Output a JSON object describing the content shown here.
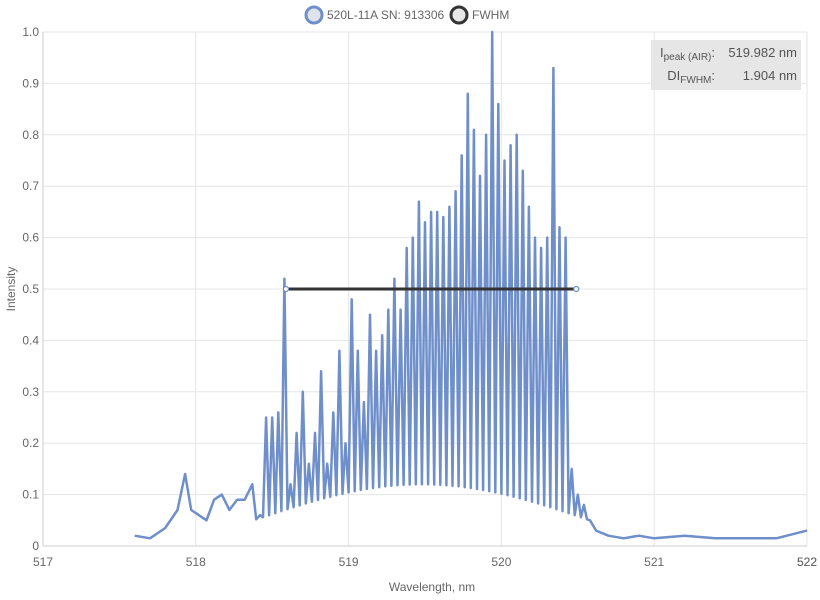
{
  "chart_data": {
    "type": "line",
    "xlabel": "Wavelength, nm",
    "ylabel": "Intensity",
    "xlim": [
      517,
      522
    ],
    "ylim": [
      0,
      1.0
    ],
    "x_ticks": [
      "517",
      "518",
      "519",
      "520",
      "521",
      "522",
      "522"
    ],
    "y_ticks": [
      "0",
      "0.1",
      "0.2",
      "0.3",
      "0.4",
      "0.5",
      "0.6",
      "0.7",
      "0.8",
      "0.9",
      "1.0"
    ],
    "grid": true,
    "legend_position": "top",
    "series": [
      {
        "name": "520L-11A SN: 913306",
        "color": "#6f8fcb",
        "style": "line",
        "x": [
          517.6,
          517.7,
          517.8,
          517.88,
          517.93,
          517.97,
          518.02,
          518.07,
          518.12,
          518.17,
          518.22,
          518.27,
          518.32,
          518.37,
          518.42,
          518.46,
          518.5,
          518.54,
          518.58,
          518.62,
          518.66,
          518.7,
          518.74,
          518.78,
          518.82,
          518.86,
          518.9,
          518.94,
          518.98,
          519.02,
          519.06,
          519.1,
          519.14,
          519.18,
          519.22,
          519.26,
          519.3,
          519.34,
          519.38,
          519.42,
          519.46,
          519.5,
          519.54,
          519.58,
          519.62,
          519.66,
          519.7,
          519.74,
          519.78,
          519.82,
          519.86,
          519.9,
          519.94,
          519.98,
          520.02,
          520.06,
          520.1,
          520.14,
          520.18,
          520.22,
          520.26,
          520.3,
          520.34,
          520.38,
          520.42,
          520.46,
          520.5,
          520.54,
          520.58,
          520.62,
          520.7,
          520.8,
          520.9,
          521.0,
          521.2,
          521.4,
          521.6,
          521.8,
          522.0
        ],
        "y": [
          0.02,
          0.015,
          0.035,
          0.07,
          0.14,
          0.07,
          0.06,
          0.05,
          0.09,
          0.1,
          0.07,
          0.09,
          0.09,
          0.12,
          0.06,
          0.25,
          0.25,
          0.26,
          0.52,
          0.12,
          0.22,
          0.3,
          0.16,
          0.22,
          0.34,
          0.16,
          0.26,
          0.38,
          0.2,
          0.48,
          0.38,
          0.28,
          0.45,
          0.38,
          0.41,
          0.46,
          0.52,
          0.46,
          0.58,
          0.6,
          0.67,
          0.63,
          0.65,
          0.65,
          0.64,
          0.66,
          0.69,
          0.76,
          0.88,
          0.81,
          0.72,
          0.8,
          1.0,
          0.86,
          0.75,
          0.78,
          0.8,
          0.73,
          0.66,
          0.6,
          0.58,
          0.6,
          0.93,
          0.62,
          0.6,
          0.15,
          0.1,
          0.08,
          0.05,
          0.03,
          0.02,
          0.015,
          0.02,
          0.015,
          0.02,
          0.015,
          0.015,
          0.015,
          0.03
        ]
      },
      {
        "name": "FWHM",
        "color": "#333333",
        "style": "line",
        "x": [
          518.59,
          520.49
        ],
        "y": [
          0.5,
          0.5
        ]
      }
    ],
    "annotations": {
      "peak_label": "I",
      "peak_sub": "peak (AIR)",
      "peak_value": "519.982 nm",
      "fwhm_label": "DI",
      "fwhm_sub": "FWHM",
      "fwhm_value": "1.904 nm"
    }
  }
}
